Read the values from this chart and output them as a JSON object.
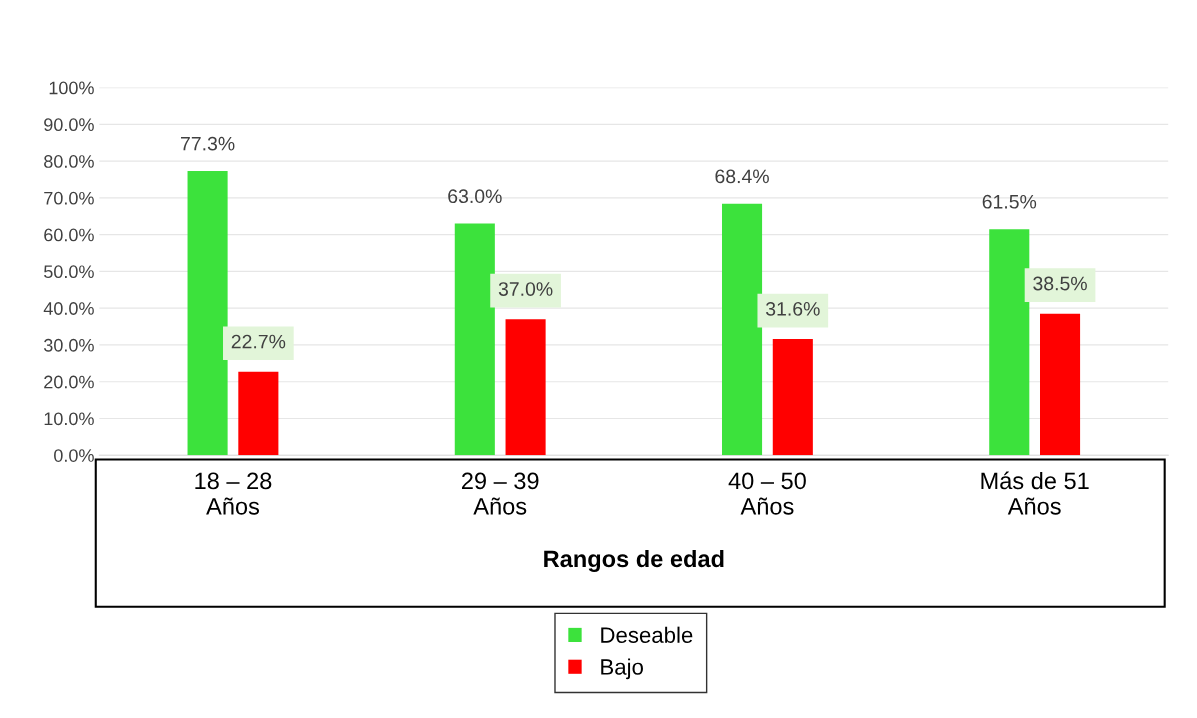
{
  "chart_data": {
    "type": "bar",
    "xlabel": "Rangos de edad",
    "categories": [
      "18 – 28\nAños",
      "29 – 39\nAños",
      "40 – 50\nAños",
      "Más de 51\nAños"
    ],
    "series": [
      {
        "name": "Deseable",
        "color": "#3ce23c",
        "values": [
          77.3,
          63.0,
          68.4,
          61.5
        ],
        "value_labels": [
          "77.3%",
          "63.0%",
          "68.4%",
          "61.5%"
        ]
      },
      {
        "name": "Bajo",
        "color": "#ff0000",
        "values": [
          22.7,
          37.0,
          31.6,
          38.5
        ],
        "value_labels": [
          "22.7%",
          "37.0%",
          "31.6%",
          "38.5%"
        ]
      }
    ],
    "ylim": [
      0,
      100
    ],
    "yticks": [
      {
        "value": 0,
        "label": "0.0%"
      },
      {
        "value": 10,
        "label": "10.0%"
      },
      {
        "value": 20,
        "label": "20.0%"
      },
      {
        "value": 30,
        "label": "30.0%"
      },
      {
        "value": 40,
        "label": "40.0%"
      },
      {
        "value": 50,
        "label": "50.0%"
      },
      {
        "value": 60,
        "label": "60.0%"
      },
      {
        "value": 70,
        "label": "70.0%"
      },
      {
        "value": 80,
        "label": "80.0%"
      },
      {
        "value": 90,
        "label": "90.0%"
      },
      {
        "value": 100,
        "label": "100%"
      }
    ],
    "grid": "y",
    "legend": "bottom"
  }
}
